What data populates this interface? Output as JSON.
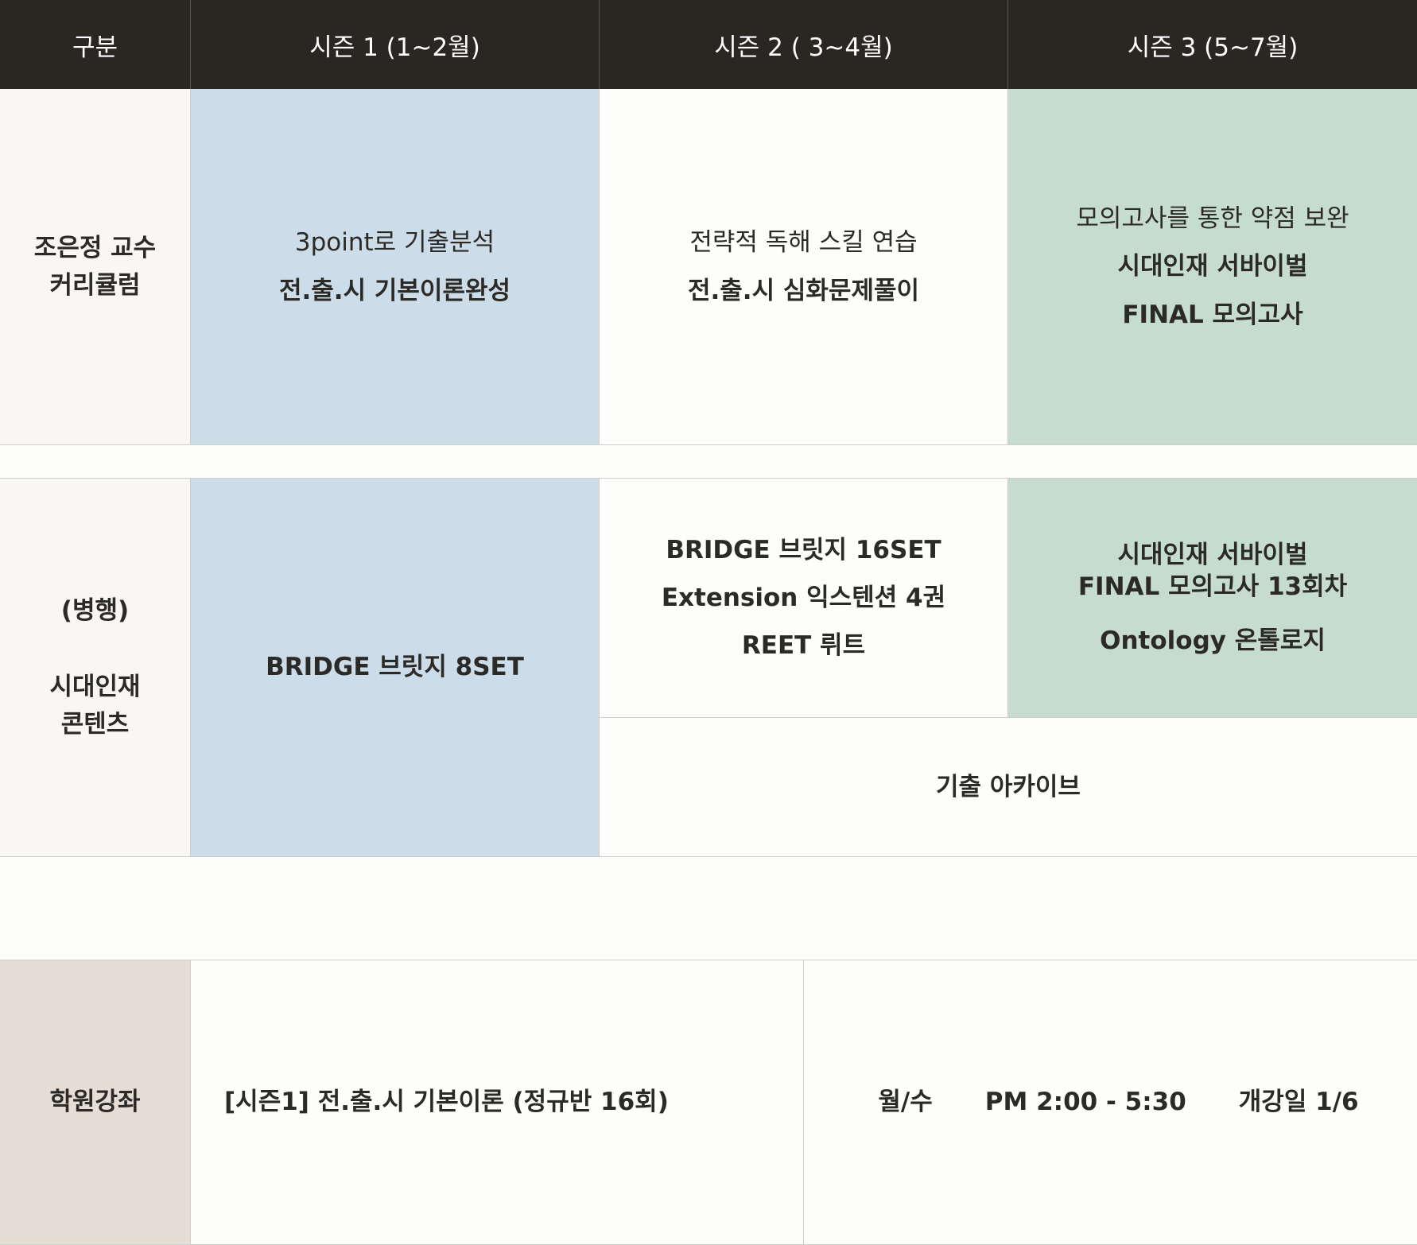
{
  "header": {
    "col0": "구분",
    "col1": "시즌 1 (1~2월)",
    "col2": "시즌 2 ( 3~4월)",
    "col3": "시즌 3 (5~7월)"
  },
  "curriculum": {
    "label_line1": "조은정 교수",
    "label_line2": "커리큘럼",
    "season1": {
      "sub": "3point로 기출분석",
      "main": "전.출.시 기본이론완성"
    },
    "season2": {
      "sub": "전략적 독해 스킬 연습",
      "main": "전.출.시 심화문제풀이"
    },
    "season3": {
      "sub": "모의고사를 통한 약점 보완",
      "main1": "시대인재 서바이벌",
      "main2": "FINAL 모의고사"
    }
  },
  "contents": {
    "label_line1": "(병행)",
    "label_line2": "시대인재",
    "label_line3": "콘텐츠",
    "season1": "BRIDGE 브릿지 8SET",
    "season2": [
      "BRIDGE 브릿지 16SET",
      "Extension 익스텐션 4권",
      "REET 뤼트"
    ],
    "season3": {
      "line1": "시대인재 서바이벌",
      "line2": "FINAL 모의고사 13회차",
      "line3": "Ontology 온톨로지"
    },
    "archive": "기출 아카이브"
  },
  "academy": {
    "label": "학원강좌",
    "course": "[시즌1] 전.출.시 기본이론 (정규반 16회)",
    "days": "월/수",
    "time": "PM 2:00 - 5:30",
    "start": "개강일 1/6"
  },
  "colors": {
    "header_bg": "#2a2723",
    "season1_bg": "#ccdce8",
    "season3_bg": "#c6dccf",
    "academy_label_bg": "#e5ded5"
  }
}
